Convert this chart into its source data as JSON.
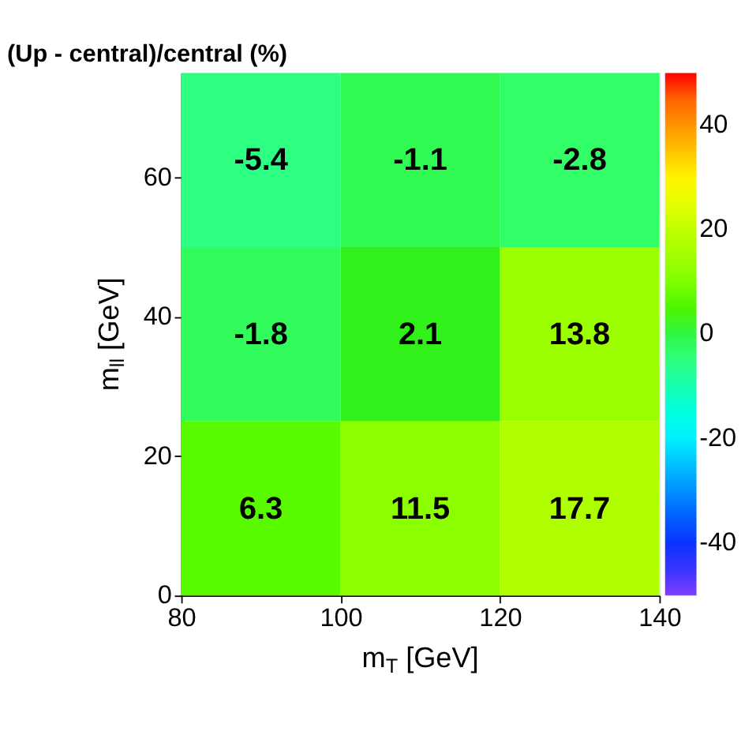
{
  "chart_data": {
    "type": "heatmap",
    "title": "(Up - central)/central (%)",
    "xlabel": "m$_{T}$ [GeV]",
    "ylabel": "m$_{ll}$ [GeV]",
    "cells": [
      [
        -5.4,
        -1.1,
        -2.8
      ],
      [
        -1.8,
        2.1,
        13.8
      ],
      [
        6.3,
        11.5,
        17.7
      ]
    ],
    "data_labels": true,
    "xlim": [
      80,
      140
    ],
    "xticks": [
      80,
      100,
      120,
      140
    ],
    "ylim": [
      0,
      75
    ],
    "yticks": [
      0,
      20,
      40,
      60
    ],
    "clim": [
      -50,
      50
    ],
    "cticks": [
      -40,
      -20,
      0,
      20,
      40
    ],
    "grid": false
  }
}
